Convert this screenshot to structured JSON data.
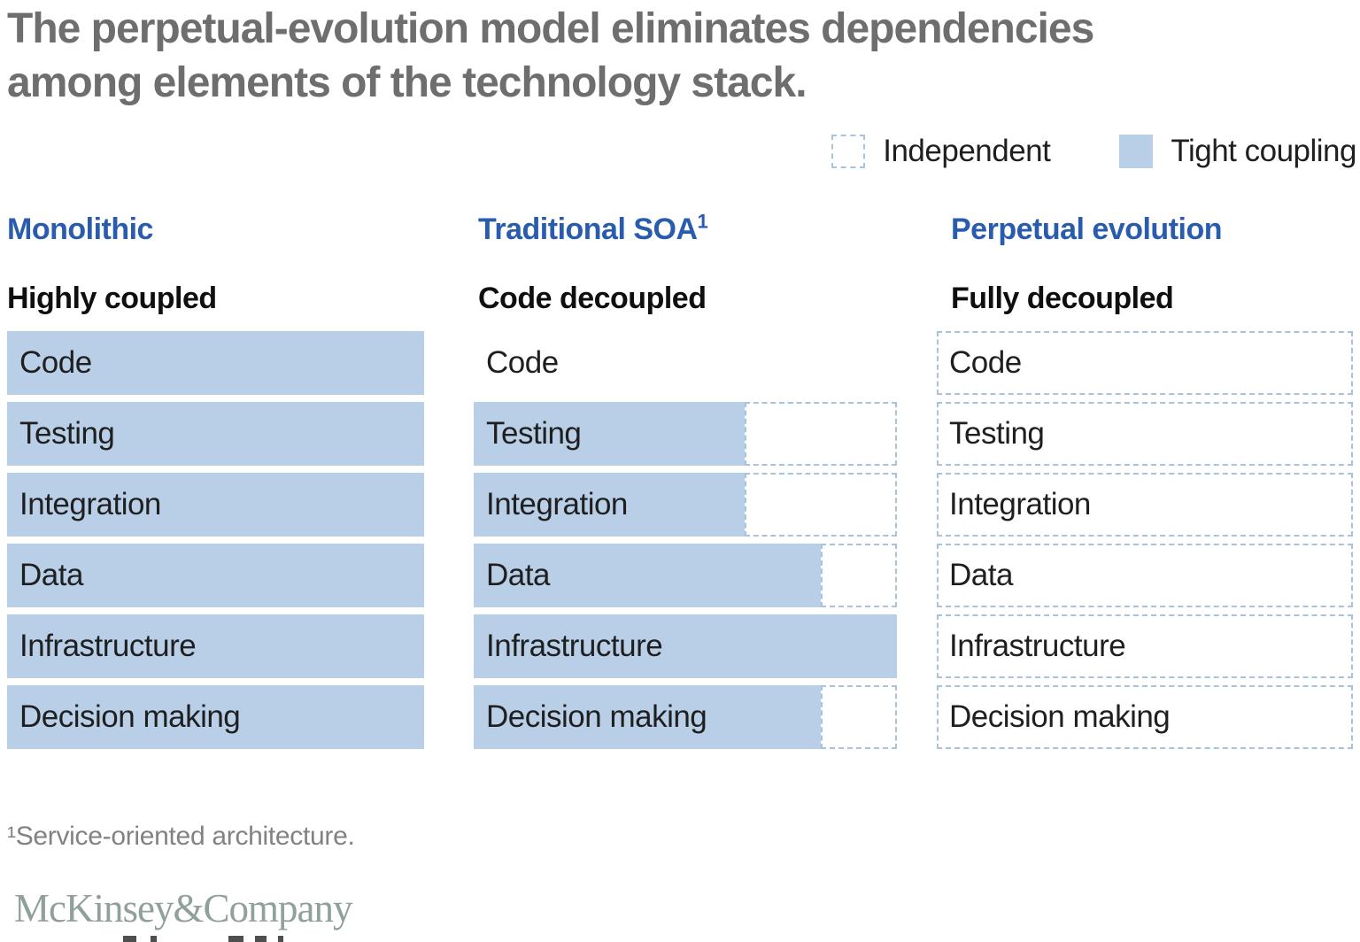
{
  "title": {
    "line1": "The perpetual-evolution model eliminates dependencies",
    "line2": "among elements of the technology stack."
  },
  "legend": {
    "independent_label": "Independent",
    "tight_coupling_label": "Tight coupling"
  },
  "columns": [
    {
      "header": "Monolithic",
      "subheader": "Highly coupled",
      "rows": [
        {
          "label": "Code",
          "fill_pct": 100,
          "dashed": false
        },
        {
          "label": "Testing",
          "fill_pct": 100,
          "dashed": false
        },
        {
          "label": "Integration",
          "fill_pct": 100,
          "dashed": false
        },
        {
          "label": "Data",
          "fill_pct": 100,
          "dashed": false
        },
        {
          "label": "Infrastructure",
          "fill_pct": 100,
          "dashed": false
        },
        {
          "label": "Decision making",
          "fill_pct": 100,
          "dashed": false
        }
      ]
    },
    {
      "header": "Traditional SOA",
      "header_sup": "1",
      "subheader": "Code decoupled",
      "rows": [
        {
          "label": "Code",
          "fill_pct": 0,
          "dashed": false
        },
        {
          "label": "Testing",
          "fill_pct": 64,
          "dashed": true
        },
        {
          "label": "Integration",
          "fill_pct": 64,
          "dashed": true
        },
        {
          "label": "Data",
          "fill_pct": 82,
          "dashed": true
        },
        {
          "label": "Infrastructure",
          "fill_pct": 100,
          "dashed": false
        },
        {
          "label": "Decision making",
          "fill_pct": 82,
          "dashed": true
        }
      ]
    },
    {
      "header": "Perpetual evolution",
      "subheader": "Fully decoupled",
      "rows": [
        {
          "label": "Code",
          "fill_pct": 0,
          "dashed": true
        },
        {
          "label": "Testing",
          "fill_pct": 0,
          "dashed": true
        },
        {
          "label": "Integration",
          "fill_pct": 0,
          "dashed": true
        },
        {
          "label": "Data",
          "fill_pct": 0,
          "dashed": true
        },
        {
          "label": "Infrastructure",
          "fill_pct": 0,
          "dashed": true
        },
        {
          "label": "Decision making",
          "fill_pct": 0,
          "dashed": true
        }
      ]
    }
  ],
  "footnote": "¹Service-oriented architecture.",
  "logo_text": "McKinsey&Company",
  "colors": {
    "accent_blue": "#2a5cad",
    "bar_fill": "#b8cfe7",
    "dashed_border": "#a6c3df",
    "title_gray": "#6e6e6e",
    "footnote_gray": "#828282",
    "text_dark": "#1f1f1f",
    "logo_gray": "#90a09a"
  }
}
